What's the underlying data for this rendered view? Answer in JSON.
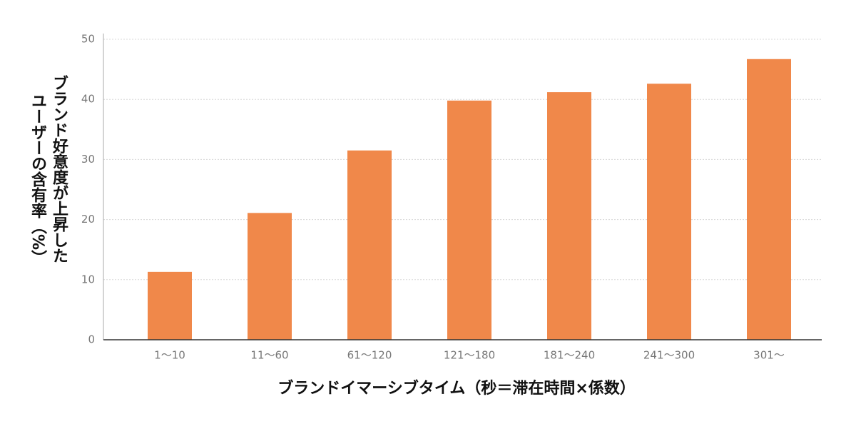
{
  "chart_data": {
    "type": "bar",
    "ylabel": [
      "ブランド好意度が上昇した",
      "ユーザーの含有率（%）"
    ],
    "xlabel": "ブランドイマーシブタイム（秒＝滞在時間×係数）",
    "categories": [
      "1〜10",
      "11〜60",
      "61〜120",
      "121〜180",
      "181〜240",
      "241〜300",
      "301〜"
    ],
    "values": [
      11.3,
      21.1,
      31.5,
      39.8,
      41.2,
      42.6,
      46.7
    ],
    "color": "#f0884a",
    "ylim": [
      0,
      50
    ],
    "yticks": [
      0,
      10,
      20,
      30,
      40,
      50
    ],
    "grid": true
  }
}
